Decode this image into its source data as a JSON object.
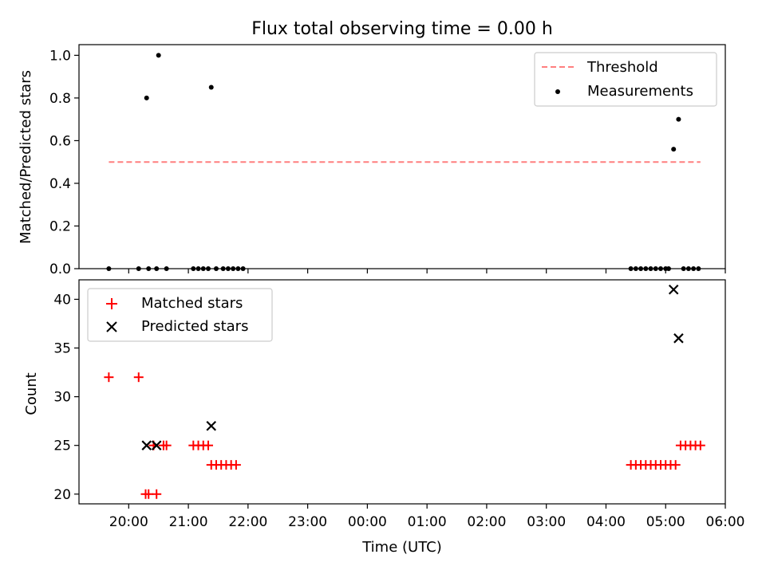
{
  "chart_data": [
    {
      "type": "scatter",
      "title": "Flux total observing time = 0.00 h",
      "ylabel": "Matched/Predicted stars",
      "xlabel": "",
      "xlim": [
        "19:10",
        "06:00"
      ],
      "ylim": [
        0,
        1.05
      ],
      "yticks": [
        0.0,
        0.2,
        0.4,
        0.6,
        0.8,
        1.0
      ],
      "ytick_labels": [
        "0.0",
        "0.2",
        "0.4",
        "0.6",
        "0.8",
        "1.0"
      ],
      "legend_position": "top-right",
      "legend": [
        {
          "label": "Threshold",
          "color": "#ff7f7f",
          "style": "dashed-line"
        },
        {
          "label": "Measurements",
          "color": "#000000",
          "style": "dot"
        }
      ],
      "threshold": {
        "value": 0.5,
        "x_start": "19:40",
        "x_end": "05:35",
        "color": "#ff7f7f"
      },
      "series": [
        {
          "name": "Measurements",
          "color": "#000000",
          "x": [
            "19:40",
            "20:10",
            "20:18",
            "20:20",
            "20:28",
            "20:30",
            "20:38",
            "21:05",
            "21:10",
            "21:15",
            "21:20",
            "21:23",
            "21:28",
            "21:35",
            "21:40",
            "21:45",
            "21:50",
            "21:55",
            "04:25",
            "04:30",
            "04:35",
            "04:40",
            "04:45",
            "04:50",
            "04:55",
            "05:00",
            "05:03",
            "05:08",
            "05:13",
            "05:18",
            "05:23",
            "05:28",
            "05:33"
          ],
          "y": [
            0.0,
            0.0,
            0.8,
            0.0,
            0.0,
            1.0,
            0.0,
            0.0,
            0.0,
            0.0,
            0.0,
            0.85,
            0.0,
            0.0,
            0.0,
            0.0,
            0.0,
            0.0,
            0.0,
            0.0,
            0.0,
            0.0,
            0.0,
            0.0,
            0.0,
            0.0,
            0.0,
            0.56,
            0.7,
            0.0,
            0.0,
            0.0,
            0.0
          ]
        }
      ]
    },
    {
      "type": "scatter",
      "title": "",
      "ylabel": "Count",
      "xlabel": "Time (UTC)",
      "xlim": [
        "19:10",
        "06:00"
      ],
      "xticks": [
        "20:00",
        "21:00",
        "22:00",
        "23:00",
        "00:00",
        "01:00",
        "02:00",
        "03:00",
        "04:00",
        "05:00",
        "06:00"
      ],
      "ylim": [
        19,
        42
      ],
      "yticks": [
        20,
        25,
        30,
        35,
        40
      ],
      "ytick_labels": [
        "20",
        "25",
        "30",
        "35",
        "40"
      ],
      "legend_position": "top-left",
      "legend": [
        {
          "label": "Matched stars",
          "color": "#ff0000",
          "marker": "plus"
        },
        {
          "label": "Predicted stars",
          "color": "#000000",
          "marker": "x"
        }
      ],
      "series": [
        {
          "name": "Matched stars",
          "color": "#ff0000",
          "marker": "plus",
          "x": [
            "19:40",
            "20:10",
            "20:17",
            "20:20",
            "20:25",
            "20:28",
            "20:35",
            "20:38",
            "21:05",
            "21:10",
            "21:15",
            "21:20",
            "21:23",
            "21:28",
            "21:33",
            "21:38",
            "21:43",
            "21:48",
            "04:25",
            "04:30",
            "04:35",
            "04:40",
            "04:45",
            "04:50",
            "04:55",
            "05:00",
            "05:05",
            "05:10",
            "05:15",
            "05:20",
            "05:25",
            "05:30",
            "05:35"
          ],
          "y": [
            32,
            32,
            20,
            20,
            25,
            20,
            25,
            25,
            25,
            25,
            25,
            25,
            23,
            23,
            23,
            23,
            23,
            23,
            23,
            23,
            23,
            23,
            23,
            23,
            23,
            23,
            23,
            23,
            25,
            25,
            25,
            25,
            25
          ]
        },
        {
          "name": "Predicted stars",
          "color": "#000000",
          "marker": "x",
          "x": [
            "20:18",
            "20:28",
            "21:23",
            "05:08",
            "05:13"
          ],
          "y": [
            25,
            25,
            27,
            41,
            36
          ]
        }
      ]
    }
  ]
}
